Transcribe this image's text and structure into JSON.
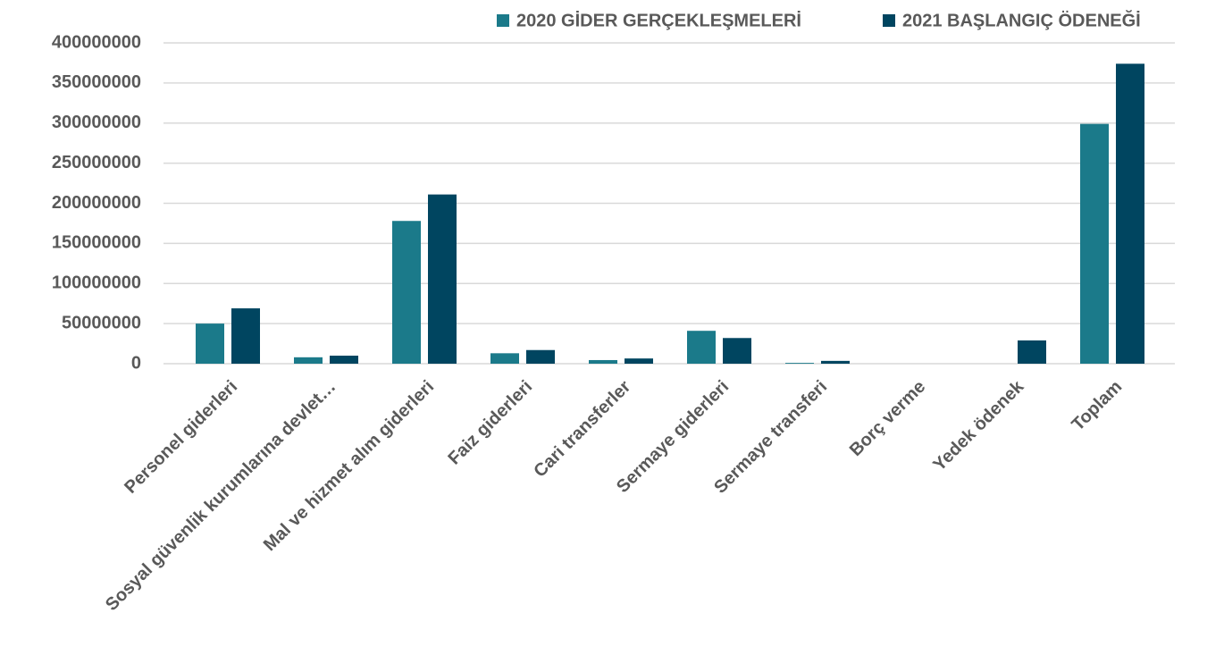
{
  "chart_data": {
    "type": "bar",
    "categories": [
      "Personel giderleri",
      "Sosyal güvenlik kurumlarına devlet…",
      "Mal ve hizmet alım giderleri",
      "Faiz giderleri",
      "Cari transferler",
      "Sermaye giderleri",
      "Sermaye transferi",
      "Borç verme",
      "Yedek ödenek",
      "Toplam"
    ],
    "series": [
      {
        "name": "2020 GİDER GERÇEKLEŞMELERİ",
        "color": "#1b7a8a",
        "values": [
          50000000,
          8000000,
          178000000,
          13000000,
          4500000,
          41000000,
          1000000,
          0,
          0,
          299000000
        ]
      },
      {
        "name": "2021 BAŞLANGIÇ ÖDENEĞİ",
        "color": "#004560",
        "values": [
          69000000,
          10000000,
          211000000,
          17000000,
          6500000,
          32000000,
          3500000,
          0,
          29000000,
          374000000
        ]
      }
    ],
    "ylim": [
      0,
      400000000
    ],
    "yticks": [
      0,
      50000000,
      100000000,
      150000000,
      200000000,
      250000000,
      300000000,
      350000000,
      400000000
    ],
    "grid": true,
    "legend": "top"
  }
}
